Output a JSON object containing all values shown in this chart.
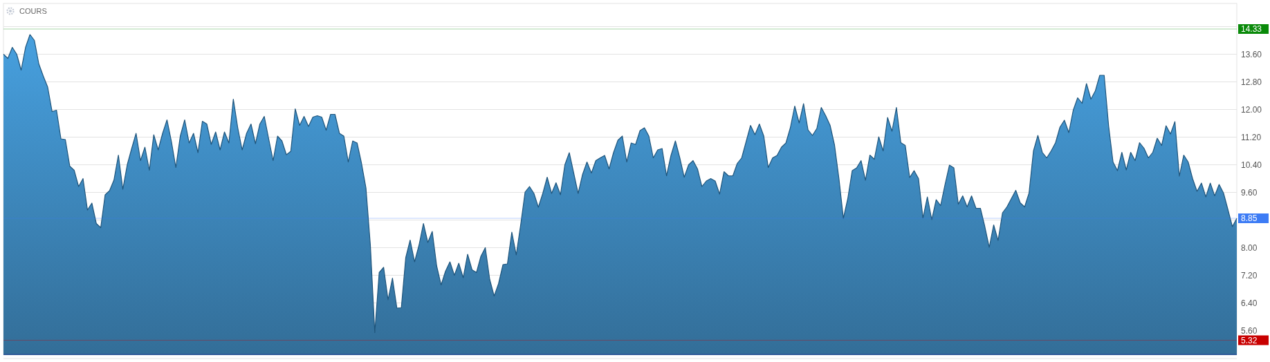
{
  "chart_data": {
    "type": "area",
    "title": "COURS",
    "ylim": [
      4.91,
      15.07
    ],
    "yticks": [
      {
        "value": 5.6,
        "label": "5.60"
      },
      {
        "value": 6.4,
        "label": "6.40"
      },
      {
        "value": 7.2,
        "label": "7.20"
      },
      {
        "value": 8,
        "label": "8.00"
      },
      {
        "value": 8.8,
        "label": null
      },
      {
        "value": 9.6,
        "label": "9.60"
      },
      {
        "value": 10.4,
        "label": "10.40"
      },
      {
        "value": 11.2,
        "label": "11.20"
      },
      {
        "value": 12,
        "label": "12.00"
      },
      {
        "value": 12.8,
        "label": "12.80"
      },
      {
        "value": 13.6,
        "label": "13.60"
      },
      {
        "value": 14.4,
        "label": null
      }
    ],
    "grid": "y",
    "tick_labels": "y",
    "ref_lines": [
      {
        "axis": "y",
        "value": 14.33,
        "label": "14.33",
        "color": "#0a8a0a"
      },
      {
        "axis": "y",
        "value": 8.85,
        "label": "8.85",
        "color": "#3d7cf5"
      },
      {
        "axis": "y",
        "value": 5.32,
        "label": "5.32",
        "color": "#c80000"
      }
    ],
    "series": [
      {
        "color": "#2f86c4",
        "values": [
          13.6,
          13.48,
          13.8,
          13.6,
          13.14,
          13.8,
          14.17,
          14.0,
          13.32,
          12.97,
          12.65,
          11.94,
          11.98,
          11.15,
          11.13,
          10.36,
          10.24,
          9.77,
          10.0,
          9.09,
          9.29,
          8.7,
          8.58,
          9.53,
          9.65,
          9.96,
          10.68,
          9.69,
          10.4,
          10.87,
          11.31,
          10.52,
          10.91,
          10.24,
          11.27,
          10.83,
          11.31,
          11.7,
          11.07,
          10.32,
          11.23,
          11.7,
          11.03,
          11.31,
          10.75,
          11.66,
          11.58,
          10.99,
          11.35,
          10.83,
          11.35,
          11.03,
          12.3,
          11.47,
          10.83,
          11.31,
          11.58,
          11.01,
          11.58,
          11.8,
          11.15,
          10.52,
          11.23,
          11.09,
          10.69,
          10.79,
          12.02,
          11.54,
          11.8,
          11.51,
          11.78,
          11.82,
          11.78,
          11.4,
          11.86,
          11.86,
          11.31,
          11.23,
          10.48,
          11.09,
          11.03,
          10.44,
          9.73,
          8.07,
          5.54,
          7.28,
          7.43,
          6.49,
          7.12,
          6.25,
          6.26,
          7.71,
          8.22,
          7.59,
          8.07,
          8.7,
          8.15,
          8.47,
          7.47,
          6.92,
          7.32,
          7.59,
          7.2,
          7.55,
          7.13,
          7.81,
          7.36,
          7.28,
          7.75,
          8.0,
          7.08,
          6.6,
          6.96,
          7.51,
          7.53,
          8.45,
          7.79,
          8.66,
          9.61,
          9.77,
          9.57,
          9.17,
          9.57,
          10.04,
          9.57,
          9.88,
          9.53,
          10.4,
          10.75,
          10.16,
          9.57,
          10.12,
          10.48,
          10.16,
          10.52,
          10.6,
          10.67,
          10.28,
          10.75,
          11.11,
          11.23,
          10.48,
          11.03,
          10.99,
          11.39,
          11.47,
          11.23,
          10.6,
          10.83,
          10.87,
          10.08,
          10.67,
          11.09,
          10.6,
          10.04,
          10.4,
          10.52,
          10.28,
          9.77,
          9.93,
          10.0,
          9.93,
          9.55,
          10.2,
          10.08,
          10.08,
          10.44,
          10.6,
          11.07,
          11.54,
          11.27,
          11.58,
          11.23,
          10.32,
          10.6,
          10.67,
          10.91,
          11.03,
          11.47,
          12.1,
          11.61,
          12.17,
          11.41,
          11.25,
          11.45,
          12.06,
          11.82,
          11.54,
          10.97,
          10.0,
          8.85,
          9.42,
          10.23,
          10.31,
          10.52,
          9.95,
          10.68,
          10.56,
          11.21,
          10.8,
          11.77,
          11.37,
          12.06,
          11.04,
          10.96,
          10.03,
          10.23,
          10.0,
          8.86,
          9.47,
          8.81,
          9.39,
          9.22,
          9.83,
          10.39,
          10.31,
          9.26,
          9.5,
          9.18,
          9.5,
          9.14,
          9.14,
          8.61,
          8.01,
          8.66,
          8.21,
          9.01,
          9.18,
          9.42,
          9.66,
          9.3,
          9.18,
          9.58,
          10.8,
          11.25,
          10.76,
          10.6,
          10.8,
          11.04,
          11.49,
          11.69,
          11.33,
          11.98,
          12.34,
          12.18,
          12.75,
          12.3,
          12.54,
          12.99,
          12.99,
          11.53,
          10.48,
          10.23,
          10.76,
          10.25,
          10.76,
          10.52,
          11.04,
          10.88,
          10.6,
          10.76,
          11.17,
          10.96,
          11.53,
          11.29,
          11.65,
          10.07,
          10.68,
          10.48,
          10.0,
          9.63,
          9.87,
          9.47,
          9.87,
          9.5,
          9.83,
          9.58,
          9.1,
          8.61,
          8.85
        ]
      }
    ]
  }
}
